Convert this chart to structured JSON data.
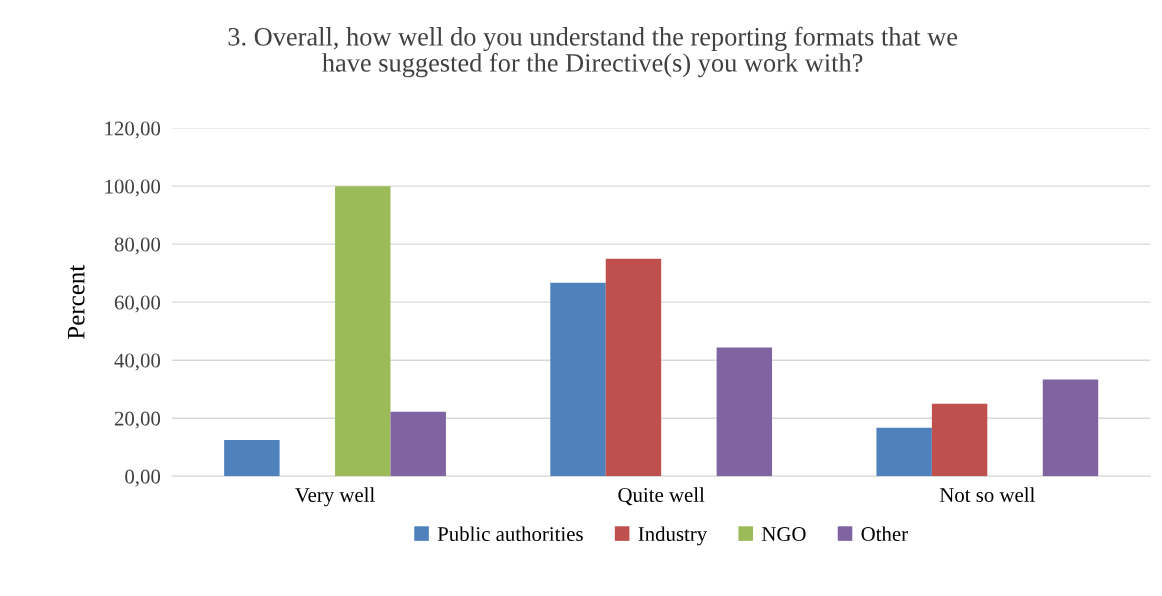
{
  "chart_data": {
    "type": "bar",
    "title": "3. Overall, how well do you understand the reporting formats that we\nhave suggested for the Directive(s) you work with?",
    "ylabel": "Percent",
    "categories": [
      "Very well",
      "Quite well",
      "Not so well"
    ],
    "series": [
      {
        "name": "Public authorities",
        "color": "#4f81bd",
        "values": [
          12.5,
          66.7,
          16.7
        ]
      },
      {
        "name": "Industry",
        "color": "#c0504d",
        "values": [
          null,
          75,
          25
        ]
      },
      {
        "name": "NGO",
        "color": "#9bbb59",
        "values": [
          100,
          null,
          null
        ]
      },
      {
        "name": "Other",
        "color": "#8064a2",
        "values": [
          22.2,
          44.4,
          33.3
        ]
      }
    ],
    "ylim": [
      0,
      120
    ],
    "yticks": [
      {
        "value": 0,
        "label": "0,00"
      },
      {
        "value": 20,
        "label": "20,00"
      },
      {
        "value": 40,
        "label": "40,00"
      },
      {
        "value": 60,
        "label": "60,00"
      },
      {
        "value": 80,
        "label": "80,00"
      },
      {
        "value": 100,
        "label": "100,00"
      },
      {
        "value": 120,
        "label": "120,00"
      }
    ],
    "grid": "y",
    "legend": "bottom"
  }
}
